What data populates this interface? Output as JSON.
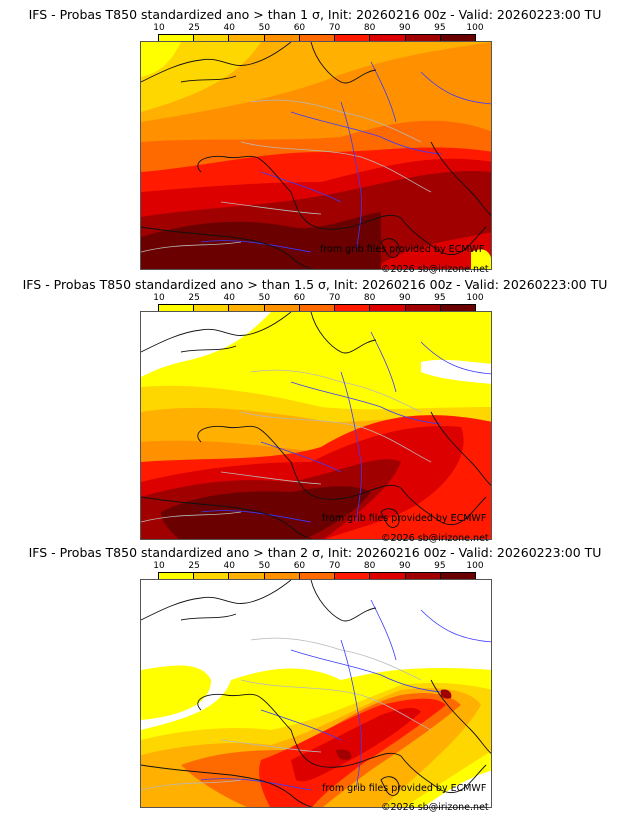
{
  "panels": [
    {
      "title": "IFS - Probas T850  standardized ano > than 1 σ, Init: 20260216 00z - Valid: 20260223:00 TU",
      "threshold_sigma": 1,
      "credit_source": "from grib files provided by ECMWF",
      "credit_copyright": "©2026 sb@irizone.net"
    },
    {
      "title": "IFS - Probas T850  standardized ano > than 1.5 σ, Init: 20260216 00z - Valid: 20260223:00 TU",
      "threshold_sigma": 1.5,
      "credit_source": "from grib files provided by ECMWF",
      "credit_copyright": "©2026 sb@irizone.net"
    },
    {
      "title": "IFS - Probas T850  standardized ano > than 2 σ, Init: 20260216 00z - Valid: 20260223:00 TU",
      "threshold_sigma": 2,
      "credit_source": "from grib files provided by ECMWF",
      "credit_copyright": "©2026 sb@irizone.net"
    }
  ],
  "colorbar": {
    "labels": [
      "10",
      "25",
      "40",
      "50",
      "60",
      "70",
      "80",
      "90",
      "95",
      "100"
    ],
    "colors": [
      "#ffff00",
      "#ffd700",
      "#ffb000",
      "#ff9000",
      "#ff6a00",
      "#ff1a00",
      "#dd0000",
      "#a00000",
      "#6a0000"
    ]
  }
}
